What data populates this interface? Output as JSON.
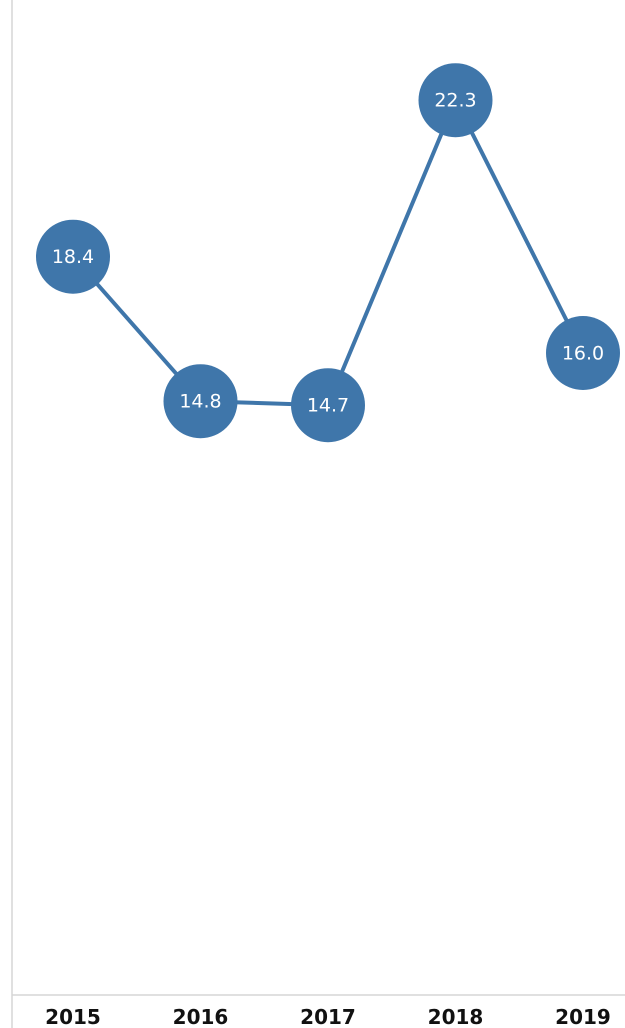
{
  "chart_data": {
    "type": "line",
    "categories": [
      "2015",
      "2016",
      "2017",
      "2018",
      "2019"
    ],
    "values": [
      18.4,
      14.8,
      14.7,
      22.3,
      16.0
    ],
    "value_labels": [
      "18.4",
      "14.8",
      "14.7",
      "22.3",
      "16.0"
    ],
    "ylim": [
      0,
      24.3
    ],
    "grid": false,
    "legend": "none",
    "colors": {
      "series": "#3f76aa",
      "label": "#ffffff",
      "axis": "#d6d6d6",
      "tick_text": "#111111"
    }
  }
}
